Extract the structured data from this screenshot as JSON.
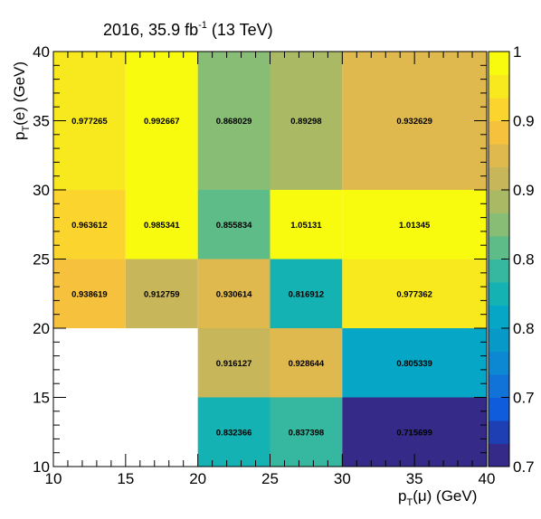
{
  "chart_data": {
    "type": "heatmap",
    "title": {
      "text": "2016, 35.9 fb",
      "sup": "-1",
      "rest": " (13 TeV)"
    },
    "xlabel": {
      "base": "p",
      "sub": "T",
      "rest": "(μ) (GeV)"
    },
    "ylabel": {
      "base": "p",
      "sub": "T",
      "rest": "(e) (GeV)"
    },
    "x_edges": [
      10,
      15,
      20,
      25,
      30,
      40
    ],
    "y_edges": [
      10,
      15,
      20,
      25,
      30,
      40
    ],
    "xlim": [
      10,
      40
    ],
    "ylim": [
      10,
      40
    ],
    "x_ticks": [
      "10",
      "15",
      "20",
      "25",
      "30",
      "35",
      "40"
    ],
    "y_ticks": [
      "10",
      "15",
      "20",
      "25",
      "30",
      "35",
      "40"
    ],
    "zlim": [
      0.7,
      1.0
    ],
    "colorbar_ticks": [
      "0.7",
      "0.7",
      "0.8",
      "0.8",
      "0.9",
      "0.9",
      "1"
    ],
    "cells": [
      {
        "x": [
          10,
          15
        ],
        "y": [
          30,
          40
        ],
        "value": 0.977265,
        "label": "0.977265"
      },
      {
        "x": [
          15,
          20
        ],
        "y": [
          30,
          40
        ],
        "value": 0.992667,
        "label": "0.992667"
      },
      {
        "x": [
          20,
          25
        ],
        "y": [
          30,
          40
        ],
        "value": 0.868029,
        "label": "0.868029"
      },
      {
        "x": [
          25,
          30
        ],
        "y": [
          30,
          40
        ],
        "value": 0.89298,
        "label": "0.89298"
      },
      {
        "x": [
          30,
          40
        ],
        "y": [
          30,
          40
        ],
        "value": 0.932629,
        "label": "0.932629"
      },
      {
        "x": [
          10,
          15
        ],
        "y": [
          25,
          30
        ],
        "value": 0.963612,
        "label": "0.963612"
      },
      {
        "x": [
          15,
          20
        ],
        "y": [
          25,
          30
        ],
        "value": 0.985341,
        "label": "0.985341"
      },
      {
        "x": [
          20,
          25
        ],
        "y": [
          25,
          30
        ],
        "value": 0.855834,
        "label": "0.855834"
      },
      {
        "x": [
          25,
          30
        ],
        "y": [
          25,
          30
        ],
        "value": 1.05131,
        "label": "1.05131"
      },
      {
        "x": [
          30,
          40
        ],
        "y": [
          25,
          30
        ],
        "value": 1.01345,
        "label": "1.01345"
      },
      {
        "x": [
          10,
          15
        ],
        "y": [
          20,
          25
        ],
        "value": 0.938619,
        "label": "0.938619"
      },
      {
        "x": [
          15,
          20
        ],
        "y": [
          20,
          25
        ],
        "value": 0.912759,
        "label": "0.912759"
      },
      {
        "x": [
          20,
          25
        ],
        "y": [
          20,
          25
        ],
        "value": 0.930614,
        "label": "0.930614"
      },
      {
        "x": [
          25,
          30
        ],
        "y": [
          20,
          25
        ],
        "value": 0.816912,
        "label": "0.816912"
      },
      {
        "x": [
          30,
          40
        ],
        "y": [
          20,
          25
        ],
        "value": 0.977362,
        "label": "0.977362"
      },
      {
        "x": [
          20,
          25
        ],
        "y": [
          15,
          20
        ],
        "value": 0.916127,
        "label": "0.916127"
      },
      {
        "x": [
          25,
          30
        ],
        "y": [
          15,
          20
        ],
        "value": 0.928644,
        "label": "0.928644"
      },
      {
        "x": [
          30,
          40
        ],
        "y": [
          15,
          20
        ],
        "value": 0.805339,
        "label": "0.805339"
      },
      {
        "x": [
          20,
          25
        ],
        "y": [
          10,
          15
        ],
        "value": 0.832366,
        "label": "0.832366"
      },
      {
        "x": [
          25,
          30
        ],
        "y": [
          10,
          15
        ],
        "value": 0.837398,
        "label": "0.837398"
      },
      {
        "x": [
          30,
          40
        ],
        "y": [
          10,
          15
        ],
        "value": 0.715699,
        "label": "0.715699"
      }
    ],
    "palette": [
      "#352a87",
      "#1e3fb4",
      "#0f5cdd",
      "#1172d8",
      "#0c87d1",
      "#079ac8",
      "#06a7c6",
      "#15b2b4",
      "#36b8a0",
      "#5ebc89",
      "#87bd74",
      "#aab964",
      "#c8b65a",
      "#e0b94e",
      "#f6c23e",
      "#fbd52d",
      "#f7e91d",
      "#f9fb0e"
    ],
    "grid": false,
    "legend": "none"
  }
}
